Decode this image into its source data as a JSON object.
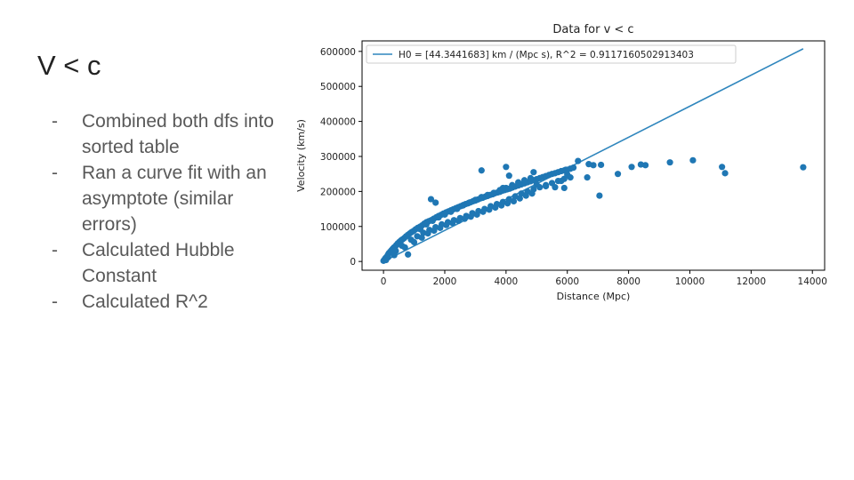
{
  "slide": {
    "title": "V < c",
    "bullets": [
      {
        "dash": "-",
        "text": "Combined both dfs into sorted table"
      },
      {
        "dash": "-",
        "text": "Ran a curve fit with an asymptote (similar errors)"
      },
      {
        "dash": "-",
        "text": "Calculated Hubble Constant"
      },
      {
        "dash": "-",
        "text": "Calculated R^2"
      }
    ]
  },
  "chart_data": {
    "type": "scatter",
    "title": "Data for v < c",
    "xlabel": "Distance (Mpc)",
    "ylabel": "Velocity (km/s)",
    "xlim": [
      -700,
      14400
    ],
    "ylim": [
      -25000,
      630000
    ],
    "xticks": [
      0,
      2000,
      4000,
      6000,
      8000,
      10000,
      12000,
      14000
    ],
    "yticks": [
      0,
      100000,
      200000,
      300000,
      400000,
      500000,
      600000
    ],
    "grid": false,
    "legend_position": "top-left",
    "colors": {
      "points": "#1f77b4",
      "fit_line": "#2f86bd"
    },
    "fit_line": {
      "label": "H0 = [44.3441683] km / (Mpc s), R^2 = 0.9117160502913403",
      "x": [
        0,
        13700
      ],
      "y": [
        0,
        607515
      ]
    },
    "series": [
      {
        "x": [
          0,
          30,
          60,
          90,
          120,
          150,
          180,
          220,
          260,
          300,
          340,
          380,
          420,
          470,
          520,
          570,
          620,
          680,
          740,
          800,
          860,
          920,
          980,
          1050,
          1120,
          1190,
          1260,
          1330,
          1400,
          1480,
          1560,
          1640,
          1720,
          1800,
          1880,
          1960,
          2040,
          2120,
          2200,
          2280,
          2360,
          2440,
          2520,
          2600,
          2680,
          2760,
          2840,
          2920,
          3000,
          3080,
          3160,
          3240,
          3320,
          3400,
          3480,
          3560,
          3640,
          3720,
          3800,
          3880,
          3960,
          4040,
          4120,
          4200,
          4300,
          4400,
          4500,
          4600,
          4700,
          4800,
          4900,
          5000,
          5100,
          5200,
          5300,
          5400,
          5500,
          5600,
          5700,
          5800,
          5900,
          6000,
          6100,
          6200,
          150,
          400,
          600,
          900,
          1100,
          1300,
          1500,
          1700,
          1900,
          2100,
          2300,
          2500,
          2700,
          2900,
          3100,
          3300,
          3500,
          3700,
          3900,
          4100,
          4300,
          4500,
          4700,
          4900,
          5100,
          5300,
          5500,
          5700,
          5900,
          6100,
          80,
          350,
          700,
          1000,
          1250,
          1450,
          1650,
          1850,
          2050,
          2250,
          2450,
          2650,
          2850,
          3050,
          3250,
          3450,
          3650,
          3850,
          4050,
          4250,
          4450,
          4650,
          4850,
          1200,
          1400,
          1600,
          1800,
          2000,
          2200,
          2400,
          2600,
          2800,
          3000,
          3200,
          3400,
          3600,
          3800,
          4000,
          4200,
          4400,
          4600,
          4800,
          1550,
          1700,
          3200,
          3900,
          4000,
          4900,
          5300,
          5600,
          5800,
          5950,
          6000,
          6350,
          6700,
          6850,
          7100,
          7050,
          7650,
          8100,
          8400,
          8550,
          9350,
          10100,
          11050,
          11150,
          13700,
          4100,
          5000,
          5900,
          6650,
          800
        ],
        "y": [
          2000,
          5000,
          9000,
          12000,
          15000,
          20000,
          24000,
          28000,
          32000,
          36000,
          40000,
          42000,
          47000,
          52000,
          56000,
          60000,
          63000,
          67000,
          72000,
          76000,
          80000,
          84000,
          87000,
          92000,
          96000,
          99000,
          103000,
          108000,
          112000,
          115000,
          118000,
          122000,
          126000,
          130000,
          133000,
          137000,
          140000,
          143000,
          146000,
          149000,
          152000,
          155000,
          158000,
          161000,
          164000,
          166000,
          169000,
          172000,
          174000,
          177000,
          180000,
          182000,
          185000,
          187000,
          190000,
          192000,
          195000,
          197000,
          199000,
          202000,
          204000,
          206000,
          208000,
          211000,
          214000,
          217000,
          220000,
          223000,
          226000,
          229000,
          232000,
          235000,
          238000,
          241000,
          244000,
          247000,
          250000,
          252000,
          255000,
          258000,
          260000,
          262000,
          265000,
          268000,
          12000,
          30000,
          45000,
          62000,
          72000,
          82000,
          90000,
          98000,
          106000,
          112000,
          118000,
          124000,
          130000,
          138000,
          144000,
          150000,
          158000,
          164000,
          170000,
          178000,
          186000,
          194000,
          200000,
          206000,
          212000,
          218000,
          224000,
          230000,
          236000,
          240000,
          4000,
          18000,
          40000,
          55000,
          68000,
          80000,
          88000,
          96000,
          104000,
          110000,
          116000,
          122000,
          128000,
          134000,
          142000,
          148000,
          154000,
          160000,
          166000,
          172000,
          180000,
          188000,
          194000,
          92000,
          106000,
          116000,
          126000,
          134000,
          142000,
          150000,
          160000,
          168000,
          176000,
          184000,
          190000,
          196000,
          204000,
          210000,
          218000,
          226000,
          232000,
          238000,
          178000,
          168000,
          260000,
          210000,
          270000,
          255000,
          215000,
          212000,
          230000,
          262000,
          248000,
          287000,
          278000,
          275000,
          276000,
          188000,
          250000,
          270000,
          277000,
          275000,
          283000,
          289000,
          270000,
          252000,
          269000,
          245000,
          220000,
          210000,
          240000,
          20000
        ]
      }
    ]
  }
}
